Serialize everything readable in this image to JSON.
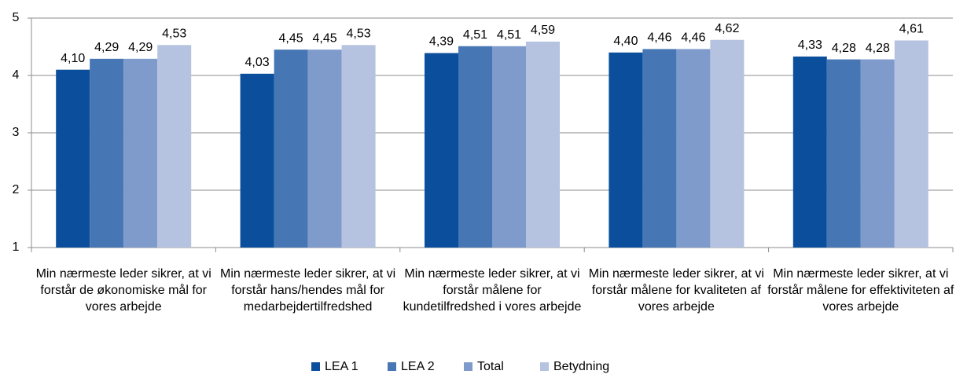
{
  "chart_data": {
    "type": "bar",
    "categories": [
      "Min nærmeste leder sikrer, at vi forstår de økonomiske mål for vores arbejde",
      "Min nærmeste leder sikrer, at vi forstår hans/hendes mål for medarbejdertilfredshed",
      "Min nærmeste leder sikrer, at vi forstår målene for kundetilfredshed i vores arbejde",
      "Min nærmeste leder sikrer, at vi forstår målene for kvaliteten af vores arbejde",
      "Min nærmeste leder sikrer, at vi forstår målene for effektiviteten af vores arbejde"
    ],
    "series": [
      {
        "name": "LEA 1",
        "color": "#0b4f9c",
        "values": [
          4.1,
          4.03,
          4.39,
          4.4,
          4.33
        ],
        "value_labels": [
          "4,10",
          "4,03",
          "4,39",
          "4,40",
          "4,33"
        ]
      },
      {
        "name": "LEA 2",
        "color": "#4676b4",
        "values": [
          4.29,
          4.45,
          4.51,
          4.46,
          4.28
        ],
        "value_labels": [
          "4,29",
          "4,45",
          "4,51",
          "4,46",
          "4,28"
        ]
      },
      {
        "name": "Total",
        "color": "#7e9bcb",
        "values": [
          4.29,
          4.45,
          4.51,
          4.46,
          4.28
        ],
        "value_labels": [
          "4,29",
          "4,45",
          "4,51",
          "4,46",
          "4,28"
        ]
      },
      {
        "name": "Betydning",
        "color": "#b5c3e0",
        "values": [
          4.53,
          4.53,
          4.59,
          4.62,
          4.61
        ],
        "value_labels": [
          "4,53",
          "4,53",
          "4,59",
          "4,62",
          "4,61"
        ]
      }
    ],
    "ylim": [
      1,
      5
    ],
    "yticks": [
      1,
      2,
      3,
      4,
      5
    ],
    "grid": true,
    "legend": "bottom"
  }
}
